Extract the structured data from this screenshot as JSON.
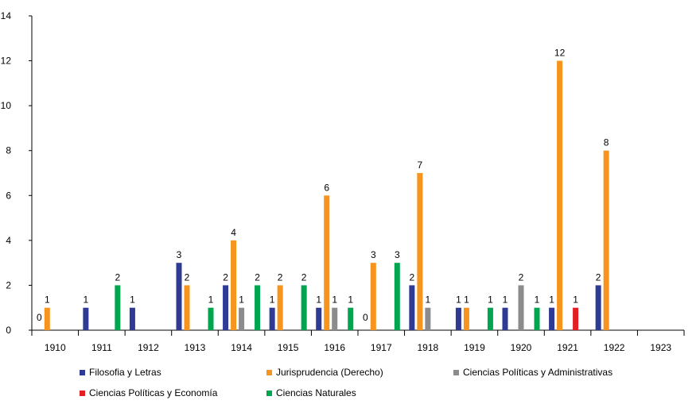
{
  "chart_data": {
    "type": "bar",
    "title": "",
    "xlabel": "",
    "ylabel": "",
    "categories": [
      "1910",
      "1911",
      "1912",
      "1913",
      "1914",
      "1915",
      "1916",
      "1917",
      "1918",
      "1919",
      "1920",
      "1921",
      "1922",
      "1923"
    ],
    "ylim": [
      0,
      14
    ],
    "yticks": [
      "0",
      "2",
      "4",
      "6",
      "8",
      "10",
      "12",
      "14"
    ],
    "grid": false,
    "legend_position": "bottom",
    "series": [
      {
        "name": "Filosofia y Letras",
        "color": "#2e3a94",
        "values": [
          null,
          1,
          1,
          3,
          2,
          1,
          1,
          null,
          2,
          1,
          1,
          1,
          2,
          null
        ]
      },
      {
        "name": "Jurisprudencia (Derecho)",
        "color": "#f7941d",
        "values": [
          1,
          null,
          null,
          2,
          4,
          2,
          6,
          3,
          7,
          1,
          null,
          12,
          8,
          null
        ]
      },
      {
        "name": "Ciencias Políticas y Administrativas",
        "color": "#8c8c8c",
        "values": [
          null,
          null,
          null,
          null,
          1,
          null,
          1,
          null,
          1,
          null,
          2,
          null,
          null,
          null
        ]
      },
      {
        "name": "Ciencias Políticas y Economía",
        "color": "#e31e24",
        "values": [
          null,
          null,
          null,
          null,
          null,
          null,
          null,
          null,
          null,
          null,
          null,
          1,
          null,
          null
        ]
      },
      {
        "name": "Ciencias Naturales",
        "color": "#00a550",
        "values": [
          null,
          2,
          null,
          1,
          2,
          2,
          1,
          3,
          null,
          1,
          1,
          null,
          null,
          null
        ]
      }
    ],
    "extra_labels": [
      {
        "category": "1910",
        "text": "0"
      },
      {
        "category": "1917",
        "text": "0"
      }
    ]
  }
}
